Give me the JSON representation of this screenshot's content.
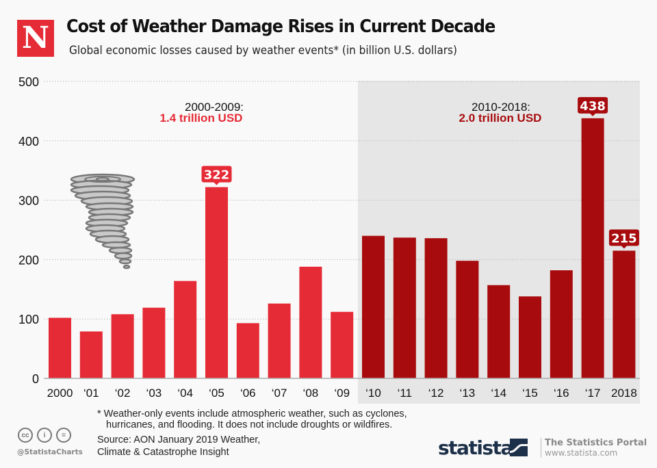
{
  "header": {
    "logo_letter": "N",
    "title": "Cost of Weather Damage Rises in Current Decade",
    "subtitle": "Global economic losses caused by weather events* (in billion U.S. dollars)"
  },
  "colors": {
    "decade1_bar": "#e52b36",
    "decade2_bar": "#a80b0d",
    "shade": "#e6e6e6",
    "decade1_total": "#e52b36",
    "decade2_total": "#a80b0d"
  },
  "annotations": {
    "decade1_range": "2000-2009:",
    "decade1_total": "1.4 trillion USD",
    "decade2_range": "2010-2018:",
    "decade2_total": "2.0 trillion USD"
  },
  "chart_data": {
    "type": "bar",
    "title": "Cost of Weather Damage Rises in Current Decade",
    "subtitle": "Global economic losses caused by weather events* (in billion U.S. dollars)",
    "xlabel": "",
    "ylabel": "",
    "ylim": [
      0,
      500
    ],
    "yticks": [
      0,
      100,
      200,
      300,
      400,
      500
    ],
    "grid": true,
    "categories": [
      "2000",
      "‘01",
      "‘02",
      "‘03",
      "‘04",
      "‘05",
      "‘06",
      "‘07",
      "‘08",
      "‘09",
      "‘10",
      "‘11",
      "‘12",
      "‘13",
      "‘14",
      "‘15",
      "‘16",
      "‘17",
      "2018"
    ],
    "values": [
      102,
      79,
      108,
      119,
      164,
      322,
      93,
      126,
      188,
      112,
      240,
      237,
      236,
      198,
      157,
      138,
      182,
      438,
      215
    ],
    "decade": [
      1,
      1,
      1,
      1,
      1,
      1,
      1,
      1,
      1,
      1,
      2,
      2,
      2,
      2,
      2,
      2,
      2,
      2,
      2
    ],
    "data_labels": [
      {
        "category": "‘05",
        "value": 322
      },
      {
        "category": "‘17",
        "value": 438
      },
      {
        "category": "2018",
        "value": 215
      }
    ],
    "shaded_region": {
      "from": "‘10",
      "to": "2018"
    }
  },
  "footer": {
    "footnote_line1": "* Weather-only events include atmospheric weather, such as cyclones,",
    "footnote_line2": "hurricanes, and flooding. It does not include droughts or wildfires.",
    "source_line1": "Source: AON January 2019 Weather,",
    "source_line2": "Climate & Catastrophe Insight",
    "license_icons": [
      "cc-icon",
      "attribution-icon",
      "no-derivatives-icon"
    ],
    "license_labels": [
      "cc",
      "i",
      "="
    ],
    "handle": "@StatistaCharts",
    "brand": "statista",
    "portal": "The Statistics Portal",
    "url": "www.statista.com"
  }
}
